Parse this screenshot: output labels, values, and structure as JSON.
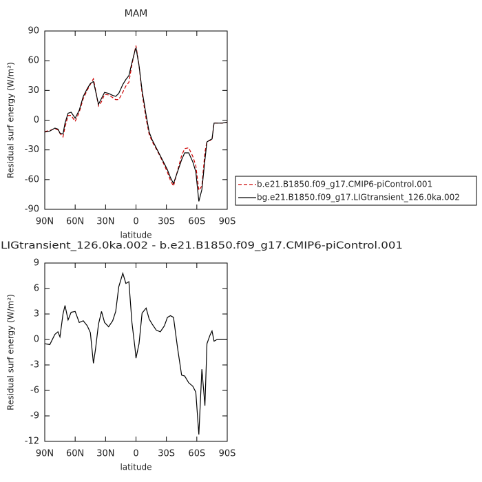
{
  "chart_data": [
    {
      "type": "line",
      "title": "MAM",
      "xlabel": "latitude",
      "ylabel": "Residual surf energy (W/m²)",
      "x": [
        90,
        85,
        80,
        77,
        75,
        72,
        70,
        67,
        64,
        60,
        56,
        52,
        48,
        45,
        42,
        40,
        37,
        34,
        31,
        27,
        23,
        20,
        17,
        13,
        10,
        7,
        4,
        1,
        0,
        -3,
        -6,
        -10,
        -13,
        -16,
        -20,
        -24,
        -28,
        -31,
        -34,
        -37,
        -41,
        -45,
        -48,
        -52,
        -56,
        -59,
        -62,
        -65,
        -68,
        -70,
        -73,
        -75,
        -77,
        -80,
        -85,
        -90
      ],
      "series": [
        {
          "name": "b.e21.B1850.f09_g17.CMIP6-piControl.001",
          "color": "#cc0000",
          "linestyle": "dashed",
          "values": [
            -11.5,
            -10.4,
            -8.6,
            -9.9,
            -13.3,
            -17,
            -7,
            4.7,
            4.8,
            -1.3,
            8,
            21.8,
            30.4,
            36.2,
            41.8,
            31.2,
            14.2,
            18.7,
            26,
            25.5,
            22.8,
            20.7,
            20.8,
            28.2,
            34.4,
            38.2,
            56,
            71,
            75.2,
            55.5,
            26.9,
            1.3,
            -14.4,
            -21.8,
            -29.1,
            -36.9,
            -45.6,
            -52.6,
            -60.8,
            -66.6,
            -51,
            -35.8,
            -28.7,
            -27.9,
            -36.5,
            -45.8,
            -70.8,
            -66.5,
            -32.2,
            -21.5,
            -20.5,
            -20,
            -2.8,
            -3,
            -3,
            -2
          ]
        },
        {
          "name": "bg.e21.B1850.f09_g17.LIGtransient_126.0ka.002",
          "color": "#000000",
          "linestyle": "solid",
          "values": [
            -12,
            -11,
            -8,
            -9,
            -13,
            -14,
            -3,
            7,
            8,
            2,
            10,
            24,
            32,
            37,
            39,
            30,
            16,
            22,
            28,
            27,
            25,
            24,
            27,
            36,
            41,
            45,
            58,
            70,
            73,
            55,
            30,
            5,
            -12,
            -20,
            -28,
            -36,
            -44,
            -50,
            -58,
            -64,
            -52,
            -40,
            -33,
            -33,
            -42,
            -52,
            -82,
            -70,
            -40,
            -22,
            -20,
            -19,
            -3,
            -3,
            -3,
            -2
          ]
        }
      ],
      "xlim": [
        90,
        -90
      ],
      "xticks": [
        {
          "value": 90,
          "label": "90N"
        },
        {
          "value": 60,
          "label": "60N"
        },
        {
          "value": 30,
          "label": "30N"
        },
        0,
        {
          "value": -30,
          "label": "30S"
        },
        {
          "value": -60,
          "label": "60S"
        },
        {
          "value": -90,
          "label": "90S"
        }
      ],
      "ylim": [
        -90,
        90
      ],
      "yticks": [
        -90,
        -60,
        -30,
        0,
        30,
        60,
        90
      ],
      "legend": "right"
    },
    {
      "type": "line",
      "title": "LIGtransient_126.0ka.002 - b.e21.B1850.f09_g17.CMIP6-piControl.001",
      "xlabel": "latitude",
      "ylabel": "Residual surf energy (W/m²)",
      "x": [
        90,
        85,
        80,
        77,
        75,
        72,
        70,
        67,
        64,
        60,
        56,
        52,
        48,
        45,
        42,
        40,
        37,
        34,
        31,
        27,
        23,
        20,
        17,
        13,
        10,
        7,
        4,
        1,
        0,
        -3,
        -6,
        -10,
        -13,
        -16,
        -20,
        -24,
        -28,
        -31,
        -34,
        -37,
        -41,
        -45,
        -48,
        -52,
        -56,
        -59,
        -62,
        -65,
        -68,
        -70,
        -73,
        -75,
        -77,
        -80,
        -85,
        -90
      ],
      "series": [
        {
          "color": "#000000",
          "linestyle": "solid",
          "values": [
            -0.5,
            -0.6,
            0.6,
            0.9,
            0.3,
            3.0,
            4.0,
            2.3,
            3.2,
            3.3,
            2.0,
            2.2,
            1.6,
            0.8,
            -2.8,
            -1.2,
            1.8,
            3.3,
            2.0,
            1.5,
            2.2,
            3.3,
            6.2,
            7.8,
            6.6,
            6.8,
            2.0,
            -1.0,
            -2.2,
            -0.5,
            3.1,
            3.7,
            2.4,
            1.8,
            1.1,
            0.9,
            1.6,
            2.6,
            2.8,
            2.6,
            -1.0,
            -4.2,
            -4.3,
            -5.1,
            -5.5,
            -6.2,
            -11.2,
            -3.5,
            -7.8,
            -0.5,
            0.5,
            1.0,
            -0.2,
            0,
            0,
            0
          ]
        }
      ],
      "xlim": [
        90,
        -90
      ],
      "xticks": [
        {
          "value": 90,
          "label": "90N"
        },
        {
          "value": 60,
          "label": "60N"
        },
        {
          "value": 30,
          "label": "30N"
        },
        0,
        {
          "value": -30,
          "label": "30S"
        },
        {
          "value": -60,
          "label": "60S"
        },
        {
          "value": -90,
          "label": "90S"
        }
      ],
      "ylim": [
        -12,
        9
      ],
      "yticks": [
        -12,
        -9,
        -6,
        -3,
        0,
        3,
        6,
        9
      ]
    }
  ]
}
